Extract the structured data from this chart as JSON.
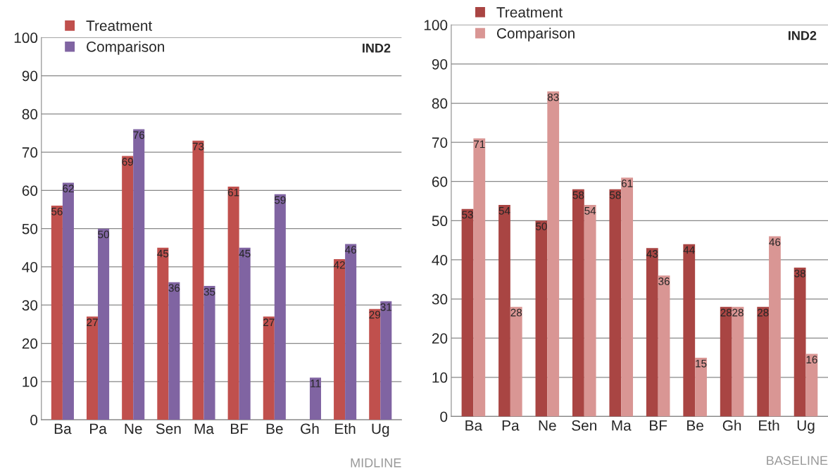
{
  "chart_data": [
    {
      "type": "bar",
      "categories": [
        "Ba",
        "Pa",
        "Ne",
        "Sen",
        "Ma",
        "BF",
        "Be",
        "Gh",
        "Eth",
        "Ug"
      ],
      "series": [
        {
          "name": "Treatment",
          "color": "#c0504d",
          "values": [
            56,
            27,
            69,
            45,
            73,
            61,
            27,
            null,
            42,
            29
          ]
        },
        {
          "name": "Comparison",
          "color": "#8064a2",
          "values": [
            62,
            50,
            76,
            36,
            35,
            45,
            59,
            11,
            46,
            31
          ]
        }
      ],
      "ylim": [
        0,
        100
      ],
      "yticks": [
        0,
        10,
        20,
        30,
        40,
        50,
        60,
        70,
        80,
        90,
        100
      ],
      "grid": "y",
      "legend": "top left",
      "data_labels": true,
      "annotations": [
        "IND2",
        "MIDLINE"
      ]
    },
    {
      "type": "bar",
      "categories": [
        "Ba",
        "Pa",
        "Ne",
        "Sen",
        "Ma",
        "BF",
        "Be",
        "Gh",
        "Eth",
        "Ug"
      ],
      "series": [
        {
          "name": "Treatment",
          "color": "#a94543",
          "values": [
            53,
            54,
            50,
            58,
            58,
            43,
            44,
            28,
            28,
            38
          ]
        },
        {
          "name": "Comparison",
          "color": "#d99694",
          "values": [
            71,
            28,
            83,
            54,
            61,
            36,
            15,
            28,
            46,
            16
          ]
        }
      ],
      "ylim": [
        0,
        100
      ],
      "yticks": [
        0,
        10,
        20,
        30,
        40,
        50,
        60,
        70,
        80,
        90,
        100
      ],
      "grid": "y",
      "legend": "top left",
      "data_labels": true,
      "annotations": [
        "IND2",
        "BASELINE"
      ]
    }
  ]
}
